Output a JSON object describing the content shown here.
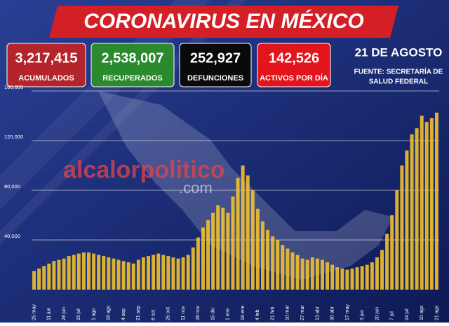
{
  "header": {
    "title": "CORONAVIRUS EN MÉXICO",
    "date": "21 DE AGOSTO",
    "source": [
      "FUENTE: SECRETARÍA DE",
      "SALUD FEDERAL"
    ],
    "stats": [
      {
        "value": "3,217,415",
        "label": "ACUMULADOS",
        "color": "#b3252b"
      },
      {
        "value": "2,538,007",
        "label": "RECUPERADOS",
        "color": "#2b8a2e"
      },
      {
        "value": "252,927",
        "label": "DEFUNCIONES",
        "color": "#0a0a0a"
      },
      {
        "value": "142,526",
        "label": "ACTIVOS POR DÍA",
        "color": "#e3141c"
      }
    ]
  },
  "watermark": {
    "name": "alcalorpolitico",
    "domain": ".com"
  },
  "chart_data": {
    "type": "bar",
    "color": "#f2c12e",
    "categories": [
      "25 may",
      null,
      null,
      "11 jun",
      null,
      null,
      "28 jun",
      null,
      null,
      "15 jul",
      null,
      null,
      "1 ago",
      null,
      null,
      "18 ago",
      null,
      null,
      "4 sep",
      null,
      null,
      "21 sep",
      null,
      null,
      "8 oct",
      null,
      null,
      "25 oct",
      null,
      null,
      "11 nov",
      null,
      null,
      "28 nov",
      null,
      null,
      "15 dic",
      null,
      null,
      "1 ene",
      null,
      null,
      "18 ene",
      null,
      null,
      "4 feb",
      null,
      null,
      "21 feb",
      null,
      null,
      "10 mar",
      null,
      null,
      "27 mar",
      null,
      null,
      "13 abr",
      null,
      null,
      "30 abr",
      null,
      null,
      "17 may",
      null,
      null,
      "3 jun",
      null,
      null,
      "20 jun",
      null,
      null,
      "7 jul",
      null,
      null,
      "24 jul",
      null,
      null,
      "10 ago",
      null,
      null,
      "21 ago"
    ],
    "values": [
      15000,
      17000,
      19000,
      21000,
      23000,
      24000,
      25000,
      27000,
      28000,
      29000,
      30000,
      30000,
      29000,
      28000,
      27000,
      26000,
      25000,
      24000,
      23000,
      22000,
      21000,
      24000,
      26000,
      27000,
      28000,
      29000,
      28000,
      27000,
      26000,
      25000,
      26000,
      28000,
      34000,
      42000,
      50000,
      56000,
      62000,
      68000,
      66000,
      62000,
      75000,
      90000,
      100000,
      92000,
      80000,
      65000,
      55000,
      48000,
      43000,
      40000,
      36000,
      33000,
      30000,
      28000,
      25000,
      24000,
      26000,
      25000,
      24000,
      22000,
      20000,
      18000,
      17000,
      16000,
      17000,
      18000,
      19000,
      20000,
      22000,
      26000,
      32000,
      45000,
      60000,
      80000,
      100000,
      112000,
      125000,
      130000,
      140000,
      135000,
      138000,
      142526
    ],
    "ylim": [
      0,
      160000
    ],
    "yticks": [
      {
        "value": 40000,
        "label": "40,000"
      },
      {
        "value": 80000,
        "label": "80,000"
      },
      {
        "value": 120000,
        "label": "120,000"
      },
      {
        "value": 160000,
        "label": "160,000"
      }
    ],
    "grid": true
  }
}
